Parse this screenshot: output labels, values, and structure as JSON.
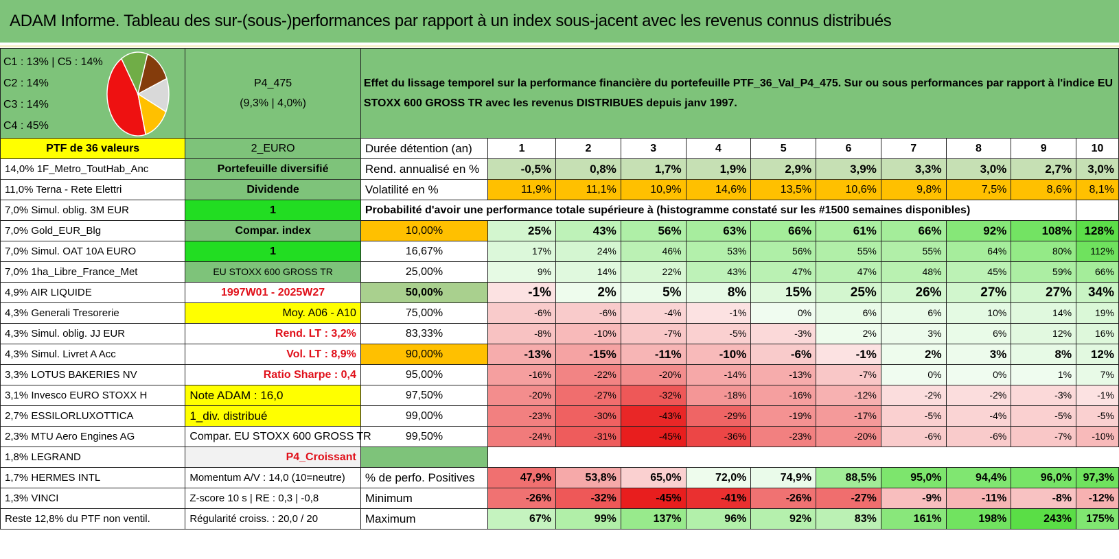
{
  "title": "ADAM Informe. Tableau des sur-(sous-)performances par rapport à un index sous-jacent avec les revenus connus distribués",
  "pie": {
    "legend": [
      "C1 : 13% | C5 : 14%",
      "C2 : 14%",
      "C3 : 14%",
      "C4 : 45%"
    ],
    "slices": [
      {
        "label": "C4",
        "value": 45,
        "color": "#ee1111"
      },
      {
        "label": "C3",
        "value": 14,
        "color": "#70ad47"
      },
      {
        "label": "C2",
        "value": 14,
        "color": "#843c0c"
      },
      {
        "label": "C1",
        "value": 13,
        "color": "#d9d9d9"
      },
      {
        "label": "C5",
        "value": 14,
        "color": "#ffc000"
      }
    ]
  },
  "portfolio": {
    "code": "P4_475",
    "stats": "(9,3% | 4,0%)"
  },
  "description": "Effet du lissage temporel sur la performance financière du portefeuille PTF_36_Val_P4_475. Sur ou sous performances par rapport à l'indice EU STOXX 600 GROSS TR avec les revenus DISTRIBUES depuis janv 1997.",
  "holdings_header": "PTF de 36 valeurs",
  "currency": "2_EURO",
  "horizon_label": "Durée détention (an)",
  "horizons": [
    "1",
    "2",
    "3",
    "4",
    "5",
    "6",
    "7",
    "8",
    "9",
    "10"
  ],
  "holdings": [
    "14,0% 1F_Metro_ToutHab_Anc",
    "11,0% Terna - Rete Elettri",
    "7,0% Simul. oblig. 3M EUR",
    "7,0% Gold_EUR_Blg",
    "7,0% Simul. OAT 10A EURO",
    "7,0% 1ha_Libre_France_Met",
    "4,9% AIR LIQUIDE",
    "4,3% Generali Tresorerie",
    "4,3% Simul. oblig. JJ EUR",
    "4,3% Simul. Livret A Acc",
    "3,3% LOTUS BAKERIES NV",
    "3,1% Invesco EURO STOXX H",
    "2,7% ESSILORLUXOTTICA",
    "2,3% MTU Aero Engines AG",
    "1,8% LEGRAND",
    "1,7% HERMES INTL",
    "1,3% VINCI",
    "Reste 12,8% du PTF non ventil."
  ],
  "info": [
    "Portefeuille diversifié",
    "Dividende",
    "1",
    "Compar. index",
    "1",
    "EU STOXX 600 GROSS TR",
    "1997W01 - 2025W27",
    "Moy. A06 - A10",
    "Rend. LT : 3,2%",
    "Vol. LT : 8,9%",
    "Ratio Sharpe : 0,4",
    "Note ADAM : 16,0",
    "1_div. distribué",
    "Compar. EU STOXX 600 GROSS TR",
    "P4_Croissant",
    "Momentum A/V : 14,0 (10=neutre)",
    "Z-score 10 s | RE : 0,3 | -0,8",
    "Régularité croiss. : 20,0 / 20"
  ],
  "rend_label": "Rend. annualisé en %",
  "rend": [
    "-0,5%",
    "0,8%",
    "1,7%",
    "1,9%",
    "2,9%",
    "3,9%",
    "3,3%",
    "3,0%",
    "2,7%",
    "3,0%"
  ],
  "vol_label": "Volatilité en %",
  "vol": [
    "11,9%",
    "11,1%",
    "10,9%",
    "14,6%",
    "13,5%",
    "10,6%",
    "9,8%",
    "7,5%",
    "8,6%",
    "8,1%"
  ],
  "prob_label": "Probabilité d'avoir une performance totale supérieure à (histogramme constaté sur les #1500 semaines disponibles)",
  "quantiles": [
    {
      "q": "10,00%",
      "v": [
        "25%",
        "43%",
        "56%",
        "63%",
        "66%",
        "61%",
        "66%",
        "92%",
        "108%",
        "128%"
      ]
    },
    {
      "q": "16,67%",
      "v": [
        "17%",
        "24%",
        "46%",
        "53%",
        "56%",
        "55%",
        "55%",
        "64%",
        "80%",
        "112%"
      ]
    },
    {
      "q": "25,00%",
      "v": [
        "9%",
        "14%",
        "22%",
        "43%",
        "47%",
        "47%",
        "48%",
        "45%",
        "59%",
        "66%"
      ]
    },
    {
      "q": "50,00%",
      "v": [
        "-1%",
        "2%",
        "5%",
        "8%",
        "15%",
        "25%",
        "26%",
        "27%",
        "27%",
        "34%"
      ]
    },
    {
      "q": "75,00%",
      "v": [
        "-6%",
        "-6%",
        "-4%",
        "-1%",
        "0%",
        "6%",
        "6%",
        "10%",
        "14%",
        "19%"
      ]
    },
    {
      "q": "83,33%",
      "v": [
        "-8%",
        "-10%",
        "-7%",
        "-5%",
        "-3%",
        "2%",
        "3%",
        "6%",
        "12%",
        "16%"
      ]
    },
    {
      "q": "90,00%",
      "v": [
        "-13%",
        "-15%",
        "-11%",
        "-10%",
        "-6%",
        "-1%",
        "2%",
        "3%",
        "8%",
        "12%"
      ]
    },
    {
      "q": "95,00%",
      "v": [
        "-16%",
        "-22%",
        "-20%",
        "-14%",
        "-13%",
        "-7%",
        "0%",
        "0%",
        "1%",
        "7%"
      ]
    },
    {
      "q": "97,50%",
      "v": [
        "-20%",
        "-27%",
        "-32%",
        "-18%",
        "-16%",
        "-12%",
        "-2%",
        "-2%",
        "-3%",
        "-1%"
      ]
    },
    {
      "q": "99,00%",
      "v": [
        "-23%",
        "-30%",
        "-43%",
        "-29%",
        "-19%",
        "-17%",
        "-5%",
        "-4%",
        "-5%",
        "-5%"
      ]
    },
    {
      "q": "99,50%",
      "v": [
        "-24%",
        "-31%",
        "-45%",
        "-36%",
        "-23%",
        "-20%",
        "-6%",
        "-6%",
        "-7%",
        "-10%"
      ]
    }
  ],
  "pos_label": "% de perfo. Positives",
  "pos": [
    "47,9%",
    "53,8%",
    "65,0%",
    "72,0%",
    "74,9%",
    "88,5%",
    "95,0%",
    "94,4%",
    "96,0%",
    "97,3%"
  ],
  "min_label": "Minimum",
  "min": [
    "-26%",
    "-32%",
    "-45%",
    "-41%",
    "-26%",
    "-27%",
    "-9%",
    "-11%",
    "-8%",
    "-12%"
  ],
  "max_label": "Maximum",
  "max": [
    "67%",
    "99%",
    "137%",
    "96%",
    "92%",
    "83%",
    "161%",
    "198%",
    "243%",
    "175%"
  ]
}
